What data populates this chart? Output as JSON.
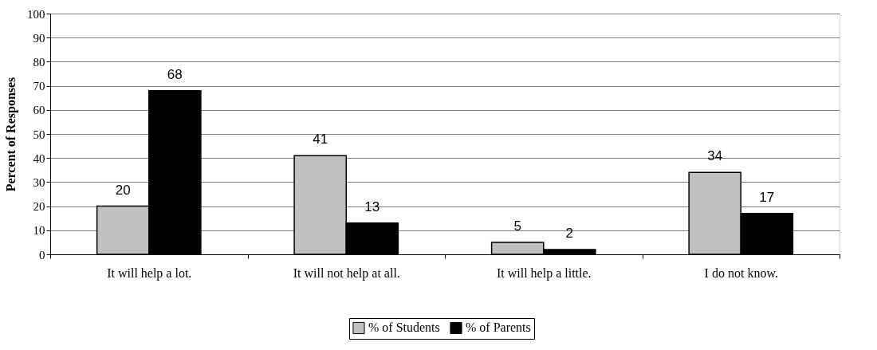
{
  "chart_data": {
    "type": "bar",
    "ylabel": "Percent of Responses",
    "categories": [
      "It will help a lot.",
      "It will not help at all.",
      "It will help a little.",
      "I do not know."
    ],
    "series": [
      {
        "name": "% of Students",
        "color": "#c0c0c0",
        "values": [
          20,
          41,
          5,
          34
        ]
      },
      {
        "name": "% of Parents",
        "color": "#000000",
        "values": [
          68,
          13,
          2,
          17
        ]
      }
    ],
    "ylim": [
      0,
      100
    ],
    "yticks": [
      0,
      10,
      20,
      30,
      40,
      50,
      60,
      70,
      80,
      90,
      100
    ],
    "grid": "y",
    "legend": "bottom",
    "data_labels": true
  }
}
